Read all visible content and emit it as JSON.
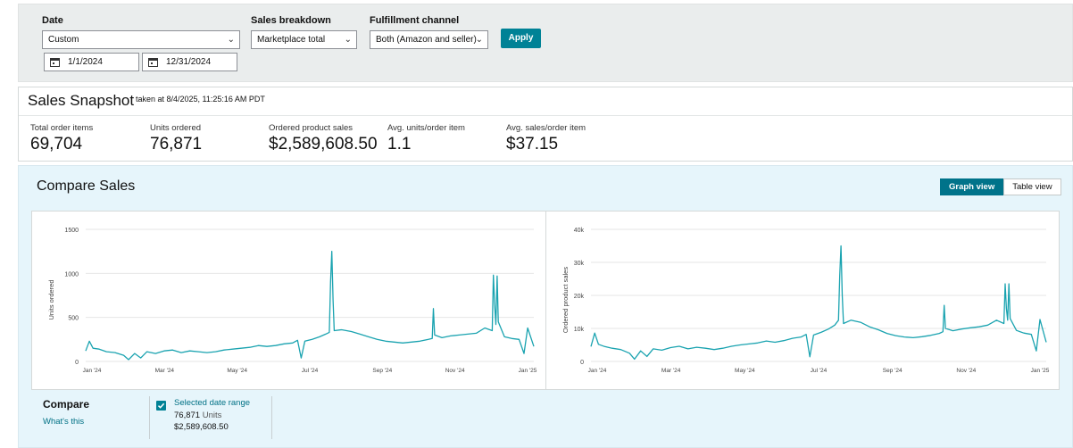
{
  "filters": {
    "date_label": "Date",
    "date_value": "Custom",
    "start_date": "1/1/2024",
    "end_date": "12/31/2024",
    "breakdown_label": "Sales breakdown",
    "breakdown_value": "Marketplace total",
    "channel_label": "Fulfillment channel",
    "channel_value": "Both (Amazon and seller)",
    "apply_label": "Apply"
  },
  "snapshot": {
    "title": "Sales Snapshot",
    "taken": "taken at 8/4/2025, 11:25:16 AM PDT",
    "metrics": [
      {
        "label": "Total order items",
        "value": "69,704"
      },
      {
        "label": "Units ordered",
        "value": "76,871"
      },
      {
        "label": "Ordered product sales",
        "value": "$2,589,608.50"
      },
      {
        "label": "Avg. units/order item",
        "value": "1.1"
      },
      {
        "label": "Avg. sales/order item",
        "value": "$37.15"
      }
    ]
  },
  "compare_sales": {
    "title": "Compare Sales",
    "graph_view_label": "Graph view",
    "table_view_label": "Table view",
    "active_view": "graph"
  },
  "compare_panel": {
    "label": "Compare",
    "whats_this": "What's this",
    "selected_range_label": "Selected date range",
    "units_value": "76,871",
    "units_suffix": "Units",
    "sales_value": "$2,589,608.50",
    "checked": true
  },
  "colors": {
    "accent": "#008296",
    "line": "#1aa3b0",
    "panel_bg": "#e6f5fb",
    "filter_bg": "#eaeded"
  },
  "chart_data": [
    {
      "type": "line",
      "ylabel": "Units ordered",
      "ylim": [
        0,
        1500
      ],
      "yticks": [
        "0",
        "500",
        "1000",
        "1500"
      ],
      "xticks": [
        "Jan '24",
        "Mar '24",
        "May '24",
        "Jul '24",
        "Sep '24",
        "Nov '24",
        "Jan '25"
      ],
      "x_range": [
        "2024-01-01",
        "2025-01-01"
      ],
      "series": [
        {
          "points": [
            [
              "2024-01-01",
              120
            ],
            [
              "2024-01-04",
              230
            ],
            [
              "2024-01-07",
              150
            ],
            [
              "2024-01-12",
              140
            ],
            [
              "2024-01-18",
              110
            ],
            [
              "2024-01-25",
              100
            ],
            [
              "2024-02-01",
              70
            ],
            [
              "2024-02-05",
              20
            ],
            [
              "2024-02-10",
              90
            ],
            [
              "2024-02-15",
              40
            ],
            [
              "2024-02-20",
              110
            ],
            [
              "2024-02-27",
              90
            ],
            [
              "2024-03-05",
              120
            ],
            [
              "2024-03-12",
              130
            ],
            [
              "2024-03-19",
              100
            ],
            [
              "2024-03-26",
              120
            ],
            [
              "2024-04-02",
              110
            ],
            [
              "2024-04-09",
              100
            ],
            [
              "2024-04-16",
              110
            ],
            [
              "2024-04-23",
              130
            ],
            [
              "2024-04-30",
              140
            ],
            [
              "2024-05-07",
              150
            ],
            [
              "2024-05-14",
              160
            ],
            [
              "2024-05-21",
              180
            ],
            [
              "2024-05-28",
              170
            ],
            [
              "2024-06-04",
              180
            ],
            [
              "2024-06-11",
              200
            ],
            [
              "2024-06-18",
              210
            ],
            [
              "2024-06-22",
              240
            ],
            [
              "2024-06-25",
              40
            ],
            [
              "2024-06-28",
              230
            ],
            [
              "2024-07-04",
              250
            ],
            [
              "2024-07-10",
              280
            ],
            [
              "2024-07-15",
              310
            ],
            [
              "2024-07-18",
              330
            ],
            [
              "2024-07-19",
              900
            ],
            [
              "2024-07-20",
              1250
            ],
            [
              "2024-07-21",
              700
            ],
            [
              "2024-07-22",
              350
            ],
            [
              "2024-07-28",
              360
            ],
            [
              "2024-08-05",
              340
            ],
            [
              "2024-08-12",
              310
            ],
            [
              "2024-08-19",
              280
            ],
            [
              "2024-08-26",
              250
            ],
            [
              "2024-09-02",
              230
            ],
            [
              "2024-09-09",
              220
            ],
            [
              "2024-09-16",
              210
            ],
            [
              "2024-09-23",
              220
            ],
            [
              "2024-09-30",
              230
            ],
            [
              "2024-10-07",
              250
            ],
            [
              "2024-10-10",
              260
            ],
            [
              "2024-10-11",
              600
            ],
            [
              "2024-10-12",
              300
            ],
            [
              "2024-10-18",
              270
            ],
            [
              "2024-10-25",
              290
            ],
            [
              "2024-11-01",
              300
            ],
            [
              "2024-11-08",
              310
            ],
            [
              "2024-11-15",
              320
            ],
            [
              "2024-11-22",
              380
            ],
            [
              "2024-11-28",
              350
            ],
            [
              "2024-11-29",
              980
            ],
            [
              "2024-11-30",
              650
            ],
            [
              "2024-12-01",
              420
            ],
            [
              "2024-12-02",
              970
            ],
            [
              "2024-12-03",
              450
            ],
            [
              "2024-12-08",
              280
            ],
            [
              "2024-12-14",
              260
            ],
            [
              "2024-12-20",
              250
            ],
            [
              "2024-12-24",
              90
            ],
            [
              "2024-12-27",
              380
            ],
            [
              "2025-01-01",
              170
            ]
          ]
        }
      ]
    },
    {
      "type": "line",
      "ylabel": "Ordered product sales",
      "ylim": [
        0,
        40000
      ],
      "yticks": [
        "0",
        "10k",
        "20k",
        "30k",
        "40k"
      ],
      "xticks": [
        "Jan '24",
        "Mar '24",
        "May '24",
        "Jul '24",
        "Sep '24",
        "Nov '24",
        "Jan '25"
      ],
      "x_range": [
        "2024-01-01",
        "2025-01-01"
      ],
      "series": [
        {
          "points": [
            [
              "2024-01-01",
              4500
            ],
            [
              "2024-01-04",
              8600
            ],
            [
              "2024-01-07",
              5200
            ],
            [
              "2024-01-12",
              4500
            ],
            [
              "2024-01-18",
              4000
            ],
            [
              "2024-01-25",
              3600
            ],
            [
              "2024-02-01",
              2500
            ],
            [
              "2024-02-05",
              700
            ],
            [
              "2024-02-10",
              3200
            ],
            [
              "2024-02-15",
              1500
            ],
            [
              "2024-02-20",
              3800
            ],
            [
              "2024-02-27",
              3400
            ],
            [
              "2024-03-05",
              4200
            ],
            [
              "2024-03-12",
              4600
            ],
            [
              "2024-03-19",
              3800
            ],
            [
              "2024-03-26",
              4300
            ],
            [
              "2024-04-02",
              4000
            ],
            [
              "2024-04-09",
              3600
            ],
            [
              "2024-04-16",
              4000
            ],
            [
              "2024-04-23",
              4600
            ],
            [
              "2024-04-30",
              5000
            ],
            [
              "2024-05-07",
              5300
            ],
            [
              "2024-05-14",
              5600
            ],
            [
              "2024-05-21",
              6200
            ],
            [
              "2024-05-28",
              5800
            ],
            [
              "2024-06-04",
              6300
            ],
            [
              "2024-06-11",
              7000
            ],
            [
              "2024-06-18",
              7400
            ],
            [
              "2024-06-22",
              8200
            ],
            [
              "2024-06-25",
              1400
            ],
            [
              "2024-06-28",
              8000
            ],
            [
              "2024-07-04",
              8800
            ],
            [
              "2024-07-10",
              9800
            ],
            [
              "2024-07-15",
              11000
            ],
            [
              "2024-07-18",
              12500
            ],
            [
              "2024-07-19",
              26000
            ],
            [
              "2024-07-20",
              35000
            ],
            [
              "2024-07-21",
              20000
            ],
            [
              "2024-07-22",
              11500
            ],
            [
              "2024-07-28",
              12500
            ],
            [
              "2024-08-05",
              11800
            ],
            [
              "2024-08-12",
              10500
            ],
            [
              "2024-08-19",
              9600
            ],
            [
              "2024-08-26",
              8500
            ],
            [
              "2024-09-02",
              7800
            ],
            [
              "2024-09-09",
              7400
            ],
            [
              "2024-09-16",
              7200
            ],
            [
              "2024-09-23",
              7500
            ],
            [
              "2024-09-30",
              7900
            ],
            [
              "2024-10-07",
              8500
            ],
            [
              "2024-10-10",
              9000
            ],
            [
              "2024-10-11",
              17000
            ],
            [
              "2024-10-12",
              10000
            ],
            [
              "2024-10-18",
              9300
            ],
            [
              "2024-10-25",
              9800
            ],
            [
              "2024-11-01",
              10200
            ],
            [
              "2024-11-08",
              10500
            ],
            [
              "2024-11-15",
              11000
            ],
            [
              "2024-11-22",
              12500
            ],
            [
              "2024-11-28",
              11500
            ],
            [
              "2024-11-29",
              23500
            ],
            [
              "2024-11-30",
              16000
            ],
            [
              "2024-12-01",
              12500
            ],
            [
              "2024-12-02",
              23500
            ],
            [
              "2024-12-03",
              13000
            ],
            [
              "2024-12-08",
              9400
            ],
            [
              "2024-12-14",
              8600
            ],
            [
              "2024-12-20",
              8200
            ],
            [
              "2024-12-24",
              3200
            ],
            [
              "2024-12-27",
              12700
            ],
            [
              "2025-01-01",
              5800
            ]
          ]
        }
      ]
    }
  ]
}
